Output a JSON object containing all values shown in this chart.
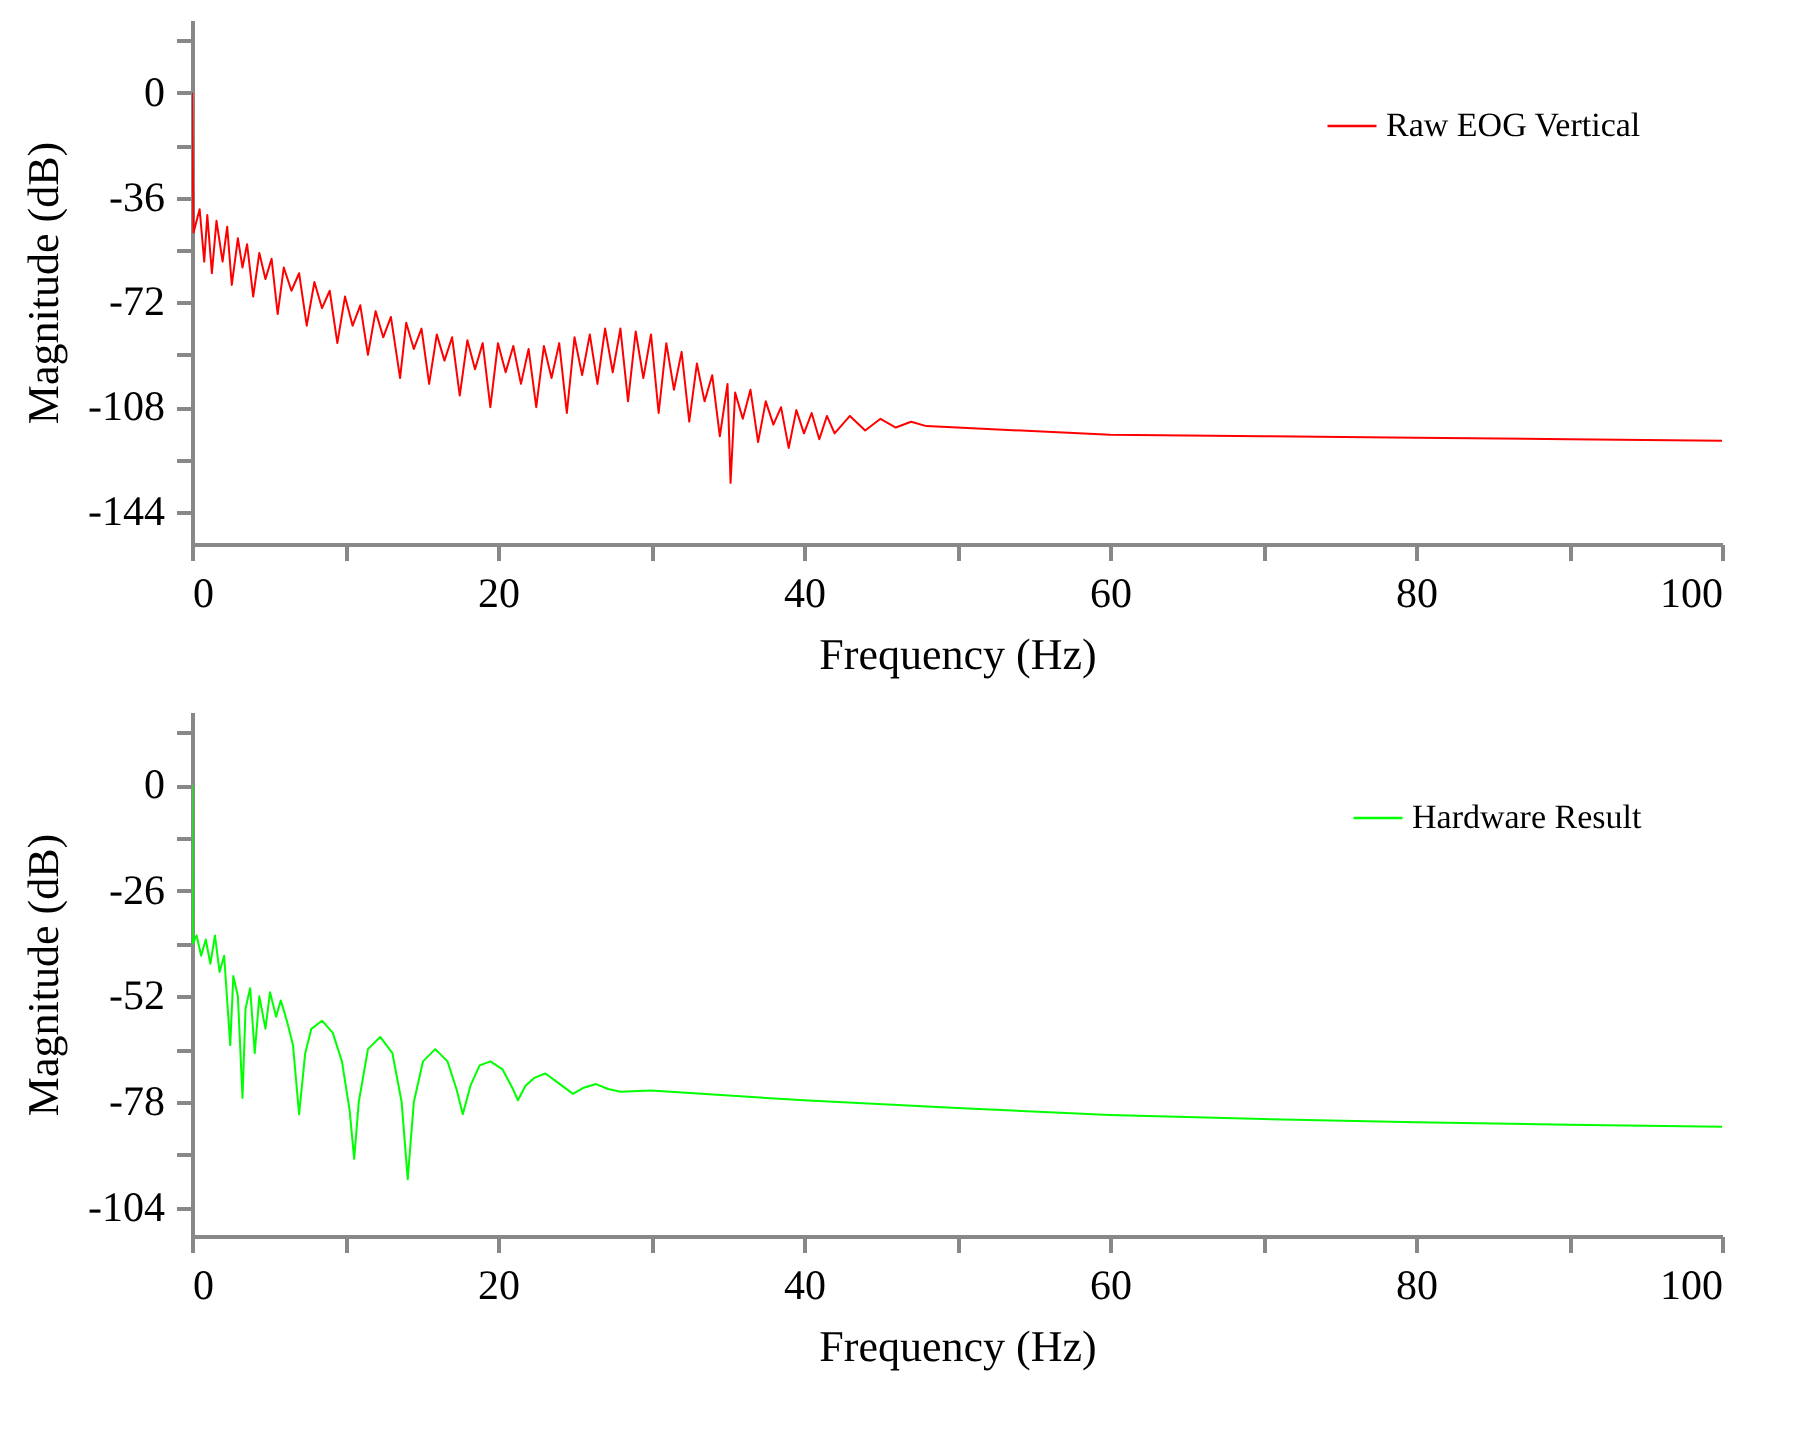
{
  "chart_data": [
    {
      "type": "line",
      "xlabel": "Frequency (Hz)",
      "ylabel": "Magnitude (dB)",
      "legend": "top right",
      "xlim": [
        0,
        100
      ],
      "ylim": [
        -155,
        25
      ],
      "xticks": [
        0,
        {
          "value": 10,
          "label": null
        },
        20,
        {
          "value": 30,
          "label": null
        },
        40,
        {
          "value": 50,
          "label": null
        },
        60,
        {
          "value": 70,
          "label": null
        },
        80,
        {
          "value": 90,
          "label": null
        },
        100
      ],
      "yticks": [
        {
          "value": 18,
          "label": null
        },
        0,
        {
          "value": -18,
          "label": null
        },
        -36,
        {
          "value": -54,
          "label": null
        },
        -72,
        {
          "value": -90,
          "label": null
        },
        -108,
        {
          "value": -126,
          "label": null
        },
        -144
      ],
      "x": [
        0,
        0.1,
        0.5,
        0.8,
        1.0,
        1.3,
        1.6,
        2.0,
        2.3,
        2.6,
        3.0,
        3.3,
        3.6,
        4.0,
        4.4,
        4.8,
        5.2,
        5.6,
        6.0,
        6.5,
        7.0,
        7.5,
        8.0,
        8.5,
        9.0,
        9.5,
        10.0,
        10.5,
        11.0,
        11.5,
        12.0,
        12.5,
        13.0,
        13.6,
        14.0,
        14.5,
        15.0,
        15.5,
        16.0,
        16.5,
        17.0,
        17.5,
        18.0,
        18.5,
        19.0,
        19.5,
        20.0,
        20.5,
        21.0,
        21.5,
        22.0,
        22.5,
        23.0,
        23.5,
        24.0,
        24.5,
        25.0,
        25.5,
        26.0,
        26.5,
        27.0,
        27.5,
        28.0,
        28.5,
        29.0,
        29.5,
        30.0,
        30.5,
        31.0,
        31.5,
        32.0,
        32.5,
        33.0,
        33.5,
        34.0,
        34.5,
        35.0,
        35.2,
        35.5,
        36.0,
        36.5,
        37.0,
        37.5,
        38.0,
        38.5,
        39.0,
        39.5,
        40.0,
        40.5,
        41.0,
        41.5,
        42.0,
        43.0,
        44.0,
        45.0,
        46.0,
        47.0,
        48.0,
        50,
        60,
        70,
        80,
        90,
        100
      ],
      "series": [
        {
          "name": "Raw EOG Vertical",
          "color": "#ff0000",
          "values": [
            0,
            -48,
            -40,
            -58,
            -42,
            -62,
            -44,
            -58,
            -46,
            -66,
            -50,
            -60,
            -52,
            -70,
            -55,
            -64,
            -57,
            -76,
            -60,
            -68,
            -62,
            -80,
            -65,
            -74,
            -68,
            -86,
            -70,
            -80,
            -73,
            -90,
            -75,
            -84,
            -77,
            -98,
            -79,
            -88,
            -81,
            -100,
            -83,
            -92,
            -84,
            -104,
            -85,
            -95,
            -86,
            -108,
            -86,
            -96,
            -87,
            -100,
            -88,
            -108,
            -87,
            -98,
            -86,
            -110,
            -84,
            -97,
            -83,
            -100,
            -81,
            -96,
            -81,
            -106,
            -82,
            -98,
            -83,
            -110,
            -86,
            -102,
            -89,
            -113,
            -93,
            -106,
            -97,
            -118,
            -100,
            -134,
            -103,
            -112,
            -102,
            -120,
            -106,
            -114,
            -108,
            -122,
            -109,
            -117,
            -110,
            -119,
            -111,
            -117,
            -111,
            -116,
            -112,
            -115,
            -113,
            -114.5,
            -115,
            -117.5,
            -118,
            -118.5,
            -119,
            -119.5
          ]
        }
      ]
    },
    {
      "type": "line",
      "xlabel": "Frequency (Hz)",
      "ylabel": "Magnitude (dB)",
      "legend": "top right",
      "xlim": [
        0,
        100
      ],
      "ylim": [
        -111,
        18
      ],
      "xticks": [
        0,
        {
          "value": 10,
          "label": null
        },
        20,
        {
          "value": 30,
          "label": null
        },
        40,
        {
          "value": 50,
          "label": null
        },
        60,
        {
          "value": 70,
          "label": null
        },
        80,
        {
          "value": 90,
          "label": null
        },
        100
      ],
      "yticks": [
        {
          "value": 13,
          "label": null
        },
        0,
        {
          "value": -13,
          "label": null
        },
        -26,
        {
          "value": -39,
          "label": null
        },
        -52,
        {
          "value": -65,
          "label": null
        },
        -78,
        {
          "value": -91,
          "label": null
        },
        -104
      ],
      "x": [
        0,
        0.05,
        0.3,
        0.6,
        0.9,
        1.2,
        1.5,
        1.8,
        2.1,
        2.5,
        2.7,
        3.0,
        3.3,
        3.5,
        3.8,
        4.1,
        4.4,
        4.8,
        5.1,
        5.5,
        5.8,
        6.2,
        6.6,
        7.0,
        7.4,
        7.8,
        8.5,
        9.2,
        9.8,
        10.3,
        10.6,
        10.9,
        11.5,
        12.3,
        13.1,
        13.7,
        14.1,
        14.5,
        15.1,
        15.9,
        16.7,
        17.3,
        17.7,
        18.2,
        18.8,
        19.5,
        20.3,
        21.0,
        21.3,
        21.8,
        22.4,
        23.1,
        24.0,
        24.9,
        25.6,
        26.4,
        27.2,
        28,
        30,
        40,
        50,
        60,
        70,
        80,
        90,
        100
      ],
      "series": [
        {
          "name": "Hardware Result",
          "color": "#00ff00",
          "values": [
            0,
            -39,
            -37,
            -42,
            -38,
            -44,
            -37,
            -46,
            -42,
            -64,
            -47,
            -52,
            -77,
            -55,
            -50,
            -66,
            -52,
            -60,
            -51,
            -57,
            -53,
            -58,
            -64,
            -81,
            -66,
            -60,
            -58,
            -61,
            -68,
            -80,
            -92,
            -78,
            -65,
            -62,
            -66,
            -78,
            -97,
            -78,
            -68,
            -65,
            -68,
            -75,
            -81,
            -74,
            -69,
            -68,
            -70,
            -75,
            -77.6,
            -74,
            -72,
            -71,
            -73.5,
            -76,
            -74.5,
            -73.6,
            -74.8,
            -75.5,
            -75.2,
            -77.6,
            -79.5,
            -81.2,
            -82.2,
            -83,
            -83.6,
            -84.1
          ]
        }
      ]
    }
  ]
}
